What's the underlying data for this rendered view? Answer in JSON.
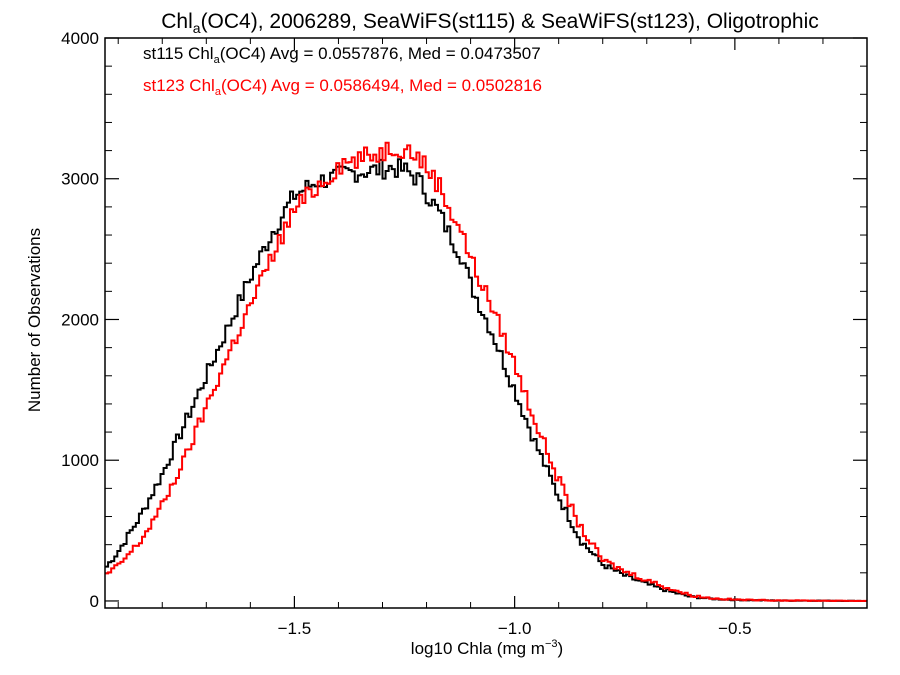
{
  "chart_data": {
    "type": "line",
    "title": {
      "prefix": "Chl",
      "sub": "a",
      "suffix": "(OC4), 2006289, SeaWiFS(st115) & SeaWiFS(st123), Oligotrophic"
    },
    "xlabel": {
      "text": "log10 Chla (mg m",
      "sup": "−3",
      "tail": ")"
    },
    "ylabel": "Number of Observations",
    "xlim": [
      -1.93,
      -0.2
    ],
    "ylim": [
      -50,
      4000
    ],
    "x_ticks": [
      -1.5,
      -1.0,
      -0.5
    ],
    "x_tick_labels": [
      "−1.5",
      "−1.0",
      "−0.5"
    ],
    "y_ticks": [
      0,
      1000,
      2000,
      3000,
      4000
    ],
    "y_tick_labels": [
      "0",
      "1000",
      "2000",
      "3000",
      "4000"
    ],
    "grid": false,
    "legend_position": "top-left",
    "series": [
      {
        "name": "st115",
        "color": "#000000",
        "legend": {
          "prefix": "st115 Chl",
          "sub": "a",
          "suffix": "(OC4) Avg = 0.0557876, Med = 0.0473507"
        },
        "x": [
          -1.93,
          -1.9,
          -1.85,
          -1.8,
          -1.75,
          -1.7,
          -1.65,
          -1.6,
          -1.55,
          -1.5,
          -1.45,
          -1.42,
          -1.4,
          -1.38,
          -1.35,
          -1.32,
          -1.3,
          -1.28,
          -1.25,
          -1.22,
          -1.2,
          -1.17,
          -1.15,
          -1.12,
          -1.1,
          -1.05,
          -1.0,
          -0.95,
          -0.9,
          -0.85,
          -0.8,
          -0.75,
          -0.7,
          -0.65,
          -0.6,
          -0.55,
          -0.5,
          -0.45,
          -0.4,
          -0.3,
          -0.2
        ],
        "y": [
          230,
          350,
          600,
          900,
          1250,
          1600,
          1950,
          2300,
          2620,
          2880,
          2980,
          3000,
          3020,
          3040,
          3050,
          3060,
          3070,
          3080,
          3060,
          3000,
          2900,
          2750,
          2620,
          2450,
          2250,
          1900,
          1500,
          1100,
          740,
          430,
          260,
          180,
          120,
          70,
          30,
          15,
          8,
          5,
          3,
          2,
          0
        ]
      },
      {
        "name": "st123",
        "color": "#ff0000",
        "legend": {
          "prefix": "st123 Chl",
          "sub": "a",
          "suffix": "(OC4) Avg = 0.0586494, Med = 0.0502816"
        },
        "x": [
          -1.93,
          -1.9,
          -1.85,
          -1.8,
          -1.75,
          -1.7,
          -1.65,
          -1.6,
          -1.55,
          -1.5,
          -1.45,
          -1.42,
          -1.4,
          -1.38,
          -1.35,
          -1.32,
          -1.3,
          -1.28,
          -1.25,
          -1.22,
          -1.2,
          -1.17,
          -1.15,
          -1.12,
          -1.1,
          -1.05,
          -1.0,
          -0.95,
          -0.9,
          -0.85,
          -0.8,
          -0.75,
          -0.7,
          -0.65,
          -0.6,
          -0.55,
          -0.5,
          -0.45,
          -0.4,
          -0.3,
          -0.2
        ],
        "y": [
          180,
          250,
          420,
          680,
          1000,
          1380,
          1750,
          2100,
          2450,
          2780,
          2940,
          3020,
          3100,
          3120,
          3140,
          3170,
          3190,
          3230,
          3220,
          3160,
          3080,
          2950,
          2800,
          2630,
          2430,
          2080,
          1680,
          1250,
          860,
          520,
          290,
          210,
          150,
          90,
          40,
          18,
          10,
          6,
          4,
          2,
          0
        ]
      }
    ]
  }
}
